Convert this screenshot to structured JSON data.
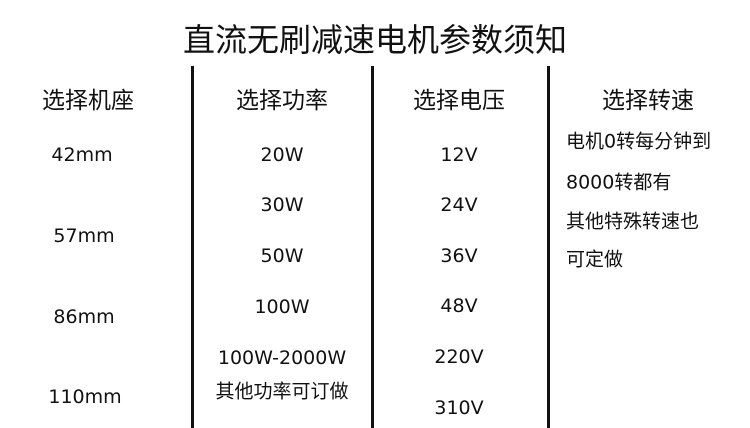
{
  "title": "直流无刷减速电机参数须知",
  "columns": [
    {
      "header": "选择机座",
      "values": [
        "42mm",
        "57mm",
        "86mm",
        "110mm"
      ]
    },
    {
      "header": "选择功率",
      "values": [
        "20W",
        "30W",
        "50W",
        "100W",
        "100W-2000W",
        "其他功率可订做"
      ]
    },
    {
      "header": "选择电压",
      "values": [
        "12V",
        "24V",
        "36V",
        "48V",
        "220V",
        "310V"
      ]
    },
    {
      "header": "选择转速",
      "lines": [
        "电机0转每分钟到",
        "8000转都有",
        "其他特殊转速也",
        "可定做"
      ]
    }
  ]
}
